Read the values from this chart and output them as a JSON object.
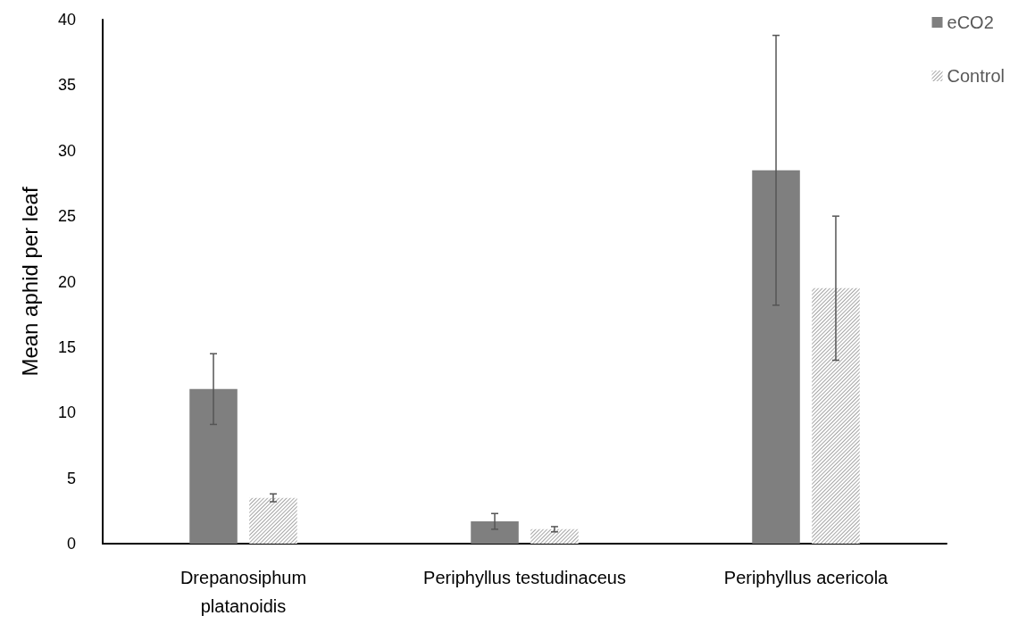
{
  "chart_data": {
    "type": "bar",
    "ylabel": "Mean aphid per leaf",
    "categories": [
      "Drepanosiphum\nplatanoidis",
      "Periphyllus testudinaceus",
      "Periphyllus acericola"
    ],
    "series": [
      {
        "name": "eCO2",
        "color": "#7f7f7f",
        "values": [
          11.8,
          1.7,
          28.5
        ],
        "errors": [
          2.7,
          0.6,
          10.3
        ]
      },
      {
        "name": "Control",
        "color": "#a6a6a6",
        "values": [
          3.5,
          1.1,
          19.5
        ],
        "errors": [
          0.3,
          0.2,
          5.5
        ]
      }
    ],
    "ylim": [
      0,
      40
    ],
    "yticks": [
      0,
      5,
      10,
      15,
      20,
      25,
      30,
      35,
      40
    ],
    "grid": false,
    "legend": "top right"
  }
}
